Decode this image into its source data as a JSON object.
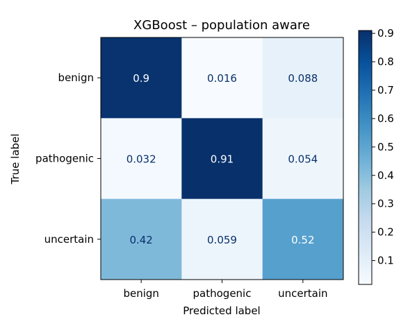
{
  "chart_data": {
    "type": "heatmap",
    "title": "XGBoost – population aware",
    "xlabel": "Predicted label",
    "ylabel": "True label",
    "x_categories": [
      "benign",
      "pathogenic",
      "uncertain"
    ],
    "y_categories": [
      "benign",
      "pathogenic",
      "uncertain"
    ],
    "values": [
      [
        0.9,
        0.016,
        0.088
      ],
      [
        0.032,
        0.91,
        0.054
      ],
      [
        0.42,
        0.059,
        0.52
      ]
    ],
    "cell_labels": [
      [
        "0.9",
        "0.016",
        "0.088"
      ],
      [
        "0.032",
        "0.91",
        "0.054"
      ],
      [
        "0.42",
        "0.059",
        "0.52"
      ]
    ],
    "colormap": "Blues",
    "colorbar": {
      "range": [
        0.016,
        0.91
      ],
      "ticks": [
        "0.1",
        "0.2",
        "0.3",
        "0.4",
        "0.5",
        "0.6",
        "0.7",
        "0.8",
        "0.9"
      ]
    },
    "grid": false
  }
}
